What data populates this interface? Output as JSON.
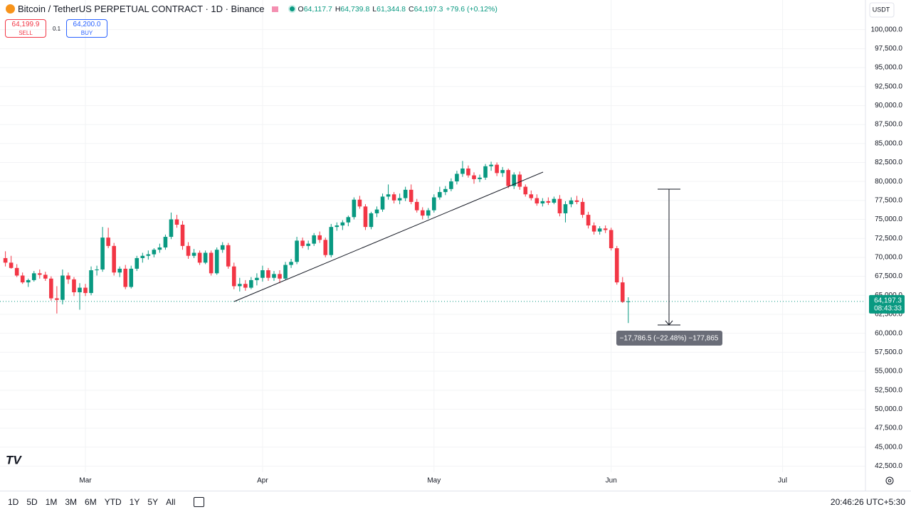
{
  "header": {
    "title": "Bitcoin / TetherUS PERPETUAL CONTRACT · 1D · Binance",
    "ohlc": [
      {
        "key": "O",
        "value": "64,117.7"
      },
      {
        "key": "H",
        "value": "64,739.8"
      },
      {
        "key": "L",
        "value": "61,344.8"
      },
      {
        "key": "C",
        "value": "64,197.3"
      }
    ],
    "change": "+79.6 (+0.12%)"
  },
  "order_panel": {
    "sell_price": "64,199.9",
    "sell_label": "SELL",
    "quantity": "0.1",
    "buy_price": "64,200.0",
    "buy_label": "BUY"
  },
  "currency": "USDT",
  "measure": {
    "label": "−17,786.5 (−22.48%) −177,865"
  },
  "toolbar": {
    "ranges": [
      "1D",
      "5D",
      "1M",
      "3M",
      "6M",
      "YTD",
      "1Y",
      "5Y",
      "All"
    ],
    "clock": "20:46:26 UTC+5:30"
  },
  "chart_data": {
    "type": "candlestick",
    "up_color": "#089981",
    "down_color": "#f23645",
    "grid": true,
    "categories": [
      null,
      null,
      null,
      null,
      null,
      null,
      null,
      null,
      null,
      null,
      null,
      null,
      null,
      null,
      "Mar",
      null,
      null,
      null,
      null,
      null,
      null,
      null,
      null,
      null,
      null,
      null,
      null,
      null,
      null,
      null,
      null,
      null,
      null,
      null,
      null,
      null,
      null,
      null,
      null,
      null,
      null,
      null,
      null,
      null,
      null,
      "Apr",
      null,
      null,
      null,
      null,
      null,
      null,
      null,
      null,
      null,
      null,
      null,
      null,
      null,
      null,
      null,
      null,
      null,
      null,
      null,
      null,
      null,
      null,
      null,
      null,
      null,
      null,
      null,
      null,
      null,
      "May",
      null,
      null,
      null,
      null,
      null,
      null,
      null,
      null,
      null,
      null,
      null,
      null,
      null,
      null,
      null,
      null,
      null,
      null,
      null,
      null,
      null,
      null,
      null,
      null,
      null,
      null,
      null,
      null,
      null,
      null,
      "Jun",
      null,
      null,
      null,
      null,
      null,
      null,
      null,
      null,
      null,
      null,
      null,
      null,
      null,
      null,
      null,
      null,
      null,
      null,
      null,
      null,
      null,
      null,
      null,
      null,
      null,
      null,
      null,
      null,
      null,
      "Jul",
      null,
      null,
      null,
      null,
      null,
      null,
      null,
      null,
      null,
      null,
      null,
      null,
      null,
      null
    ],
    "open": [
      69900,
      69300,
      68600,
      67600,
      66700,
      67000,
      67900,
      67700,
      67200,
      64600,
      64400,
      67600,
      67100,
      65400,
      66000,
      65300,
      68300,
      68400,
      72600,
      71500,
      68000,
      68500,
      66100,
      68500,
      69900,
      70200,
      70400,
      71000,
      71300,
      72700,
      75000,
      74300,
      71500,
      70200,
      70600,
      69300,
      70600,
      67900,
      71000,
      71600,
      68800,
      66200,
      66500,
      66000,
      67000,
      67300,
      68300,
      67300,
      67800,
      67200,
      69000,
      69400,
      72200,
      71500,
      71800,
      72900,
      72300,
      70300,
      74000,
      74200,
      74600,
      75300,
      77600,
      76700,
      74000,
      75800,
      76300,
      78000,
      78300,
      77500,
      77800,
      78900,
      77300,
      76200,
      75500,
      76200,
      77900,
      78600,
      79000,
      80000,
      81000,
      81700,
      80800,
      80300,
      80500,
      82000,
      82200,
      81100,
      81500,
      79400,
      80900,
      79300,
      78300,
      77800,
      77100,
      77400,
      77200,
      77700,
      75800,
      77000,
      77500,
      77300,
      75600,
      74200,
      73400,
      73800,
      73600,
      71200,
      66700,
      64117.7,
      null,
      null,
      null,
      null,
      null,
      null,
      null,
      null,
      null,
      null,
      null,
      null,
      null,
      null,
      null,
      null,
      null,
      null,
      null,
      null,
      null,
      null,
      null,
      null,
      null,
      null,
      null,
      null,
      null,
      null,
      null,
      null,
      null,
      null,
      null,
      null,
      null,
      null,
      null,
      null,
      null
    ],
    "high": [
      70800,
      70200,
      69100,
      68000,
      67200,
      68200,
      68400,
      68100,
      67500,
      66200,
      68400,
      68000,
      67400,
      66600,
      66500,
      68800,
      68900,
      74000,
      73900,
      71900,
      68800,
      69000,
      68900,
      70200,
      70600,
      70900,
      71200,
      71800,
      73000,
      75900,
      75600,
      74800,
      72000,
      71100,
      70900,
      70900,
      70900,
      71300,
      72000,
      71900,
      69300,
      67300,
      67000,
      67400,
      67900,
      68900,
      68600,
      68200,
      68300,
      69400,
      69800,
      72700,
      72600,
      72200,
      73200,
      73400,
      72600,
      74400,
      74600,
      74900,
      75500,
      77900,
      78100,
      77000,
      76000,
      76700,
      78400,
      79600,
      78600,
      78400,
      79300,
      79600,
      77700,
      76600,
      76500,
      78300,
      79300,
      79400,
      80400,
      81400,
      82700,
      82100,
      81200,
      80900,
      82300,
      82600,
      82500,
      81900,
      81700,
      81200,
      81300,
      79600,
      78800,
      78300,
      77800,
      77900,
      78000,
      78200,
      77400,
      77900,
      78100,
      77800,
      76000,
      74600,
      74100,
      74200,
      73900,
      71500,
      67400,
      64739.8,
      null,
      null,
      null,
      null,
      null,
      null,
      null,
      null,
      null,
      null,
      null,
      null,
      null,
      null,
      null,
      null,
      null,
      null,
      null,
      null,
      null,
      null,
      null,
      null,
      null,
      null,
      null,
      null,
      null,
      null,
      null,
      null,
      null,
      null,
      null,
      null,
      null,
      null,
      null,
      null,
      null
    ],
    "low": [
      68800,
      68500,
      67400,
      66500,
      66100,
      66800,
      67200,
      66900,
      64300,
      62600,
      63800,
      66500,
      64900,
      63100,
      64900,
      65000,
      67600,
      68100,
      71200,
      67600,
      67400,
      65800,
      65900,
      68200,
      69300,
      69700,
      70000,
      70600,
      71000,
      72400,
      73900,
      71000,
      69800,
      69900,
      69000,
      69100,
      67600,
      67700,
      70600,
      68500,
      65800,
      65500,
      65600,
      65800,
      66300,
      66800,
      66900,
      66900,
      66600,
      67000,
      68600,
      69100,
      71200,
      71000,
      71500,
      71900,
      70000,
      70000,
      73500,
      73600,
      74100,
      75000,
      76400,
      73600,
      73700,
      75300,
      76000,
      77600,
      77100,
      77000,
      77400,
      77000,
      75900,
      75000,
      75100,
      75900,
      77600,
      78200,
      78700,
      79600,
      80600,
      80500,
      79700,
      79900,
      80200,
      81400,
      80700,
      80600,
      79100,
      79000,
      78900,
      78000,
      77500,
      76800,
      76700,
      76900,
      77000,
      75400,
      74600,
      76600,
      77000,
      75200,
      73800,
      73000,
      73000,
      73200,
      70900,
      66400,
      64000,
      61344.8,
      null,
      null,
      null,
      null,
      null,
      null,
      null,
      null,
      null,
      null,
      null,
      null,
      null,
      null,
      null,
      null,
      null,
      null,
      null,
      null,
      null,
      null,
      null,
      null,
      null,
      null,
      null,
      null,
      null,
      null,
      null,
      null,
      null,
      null,
      null,
      null,
      null,
      null,
      null,
      null,
      null
    ],
    "close": [
      69300,
      68600,
      67600,
      66700,
      67000,
      67900,
      67700,
      67200,
      64600,
      64400,
      67600,
      67100,
      65400,
      66000,
      65300,
      68300,
      68400,
      72600,
      71500,
      68000,
      68500,
      66100,
      68500,
      69900,
      70200,
      70400,
      71000,
      71300,
      72700,
      75000,
      74300,
      71500,
      70200,
      70600,
      69300,
      70600,
      67900,
      71000,
      71600,
      68800,
      66200,
      66500,
      66000,
      67000,
      67300,
      68300,
      67300,
      67800,
      67200,
      69000,
      69400,
      72200,
      71500,
      71800,
      72900,
      72300,
      70300,
      74000,
      74200,
      74600,
      75300,
      77600,
      76700,
      74000,
      75800,
      76300,
      78000,
      78300,
      77500,
      77800,
      78900,
      77300,
      76200,
      75500,
      76200,
      77900,
      78600,
      79000,
      80000,
      81000,
      81700,
      80800,
      80300,
      80500,
      82000,
      82200,
      81100,
      81500,
      79400,
      80900,
      79300,
      78300,
      77800,
      77100,
      77400,
      77200,
      77700,
      75800,
      77000,
      77500,
      77300,
      75600,
      74200,
      73400,
      73800,
      73600,
      71200,
      66700,
      64117.7,
      64197.3,
      null,
      null,
      null,
      null,
      null,
      null,
      null,
      null,
      null,
      null,
      null,
      null,
      null,
      null,
      null,
      null,
      null,
      null,
      null,
      null,
      null,
      null,
      null,
      null,
      null,
      null,
      null,
      null,
      null,
      null,
      null,
      null,
      null,
      null,
      null,
      null,
      null,
      null,
      null,
      null,
      null
    ],
    "last_price_label": "64,197.3",
    "countdown": "08:43:33",
    "ylim": [
      39450,
      103900
    ],
    "yticks": [
      {
        "value": 42500,
        "label": "42,500.0"
      },
      {
        "value": 45000,
        "label": "45,000.0"
      },
      {
        "value": 47500,
        "label": "47,500.0"
      },
      {
        "value": 50000,
        "label": "50,000.0"
      },
      {
        "value": 52500,
        "label": "52,500.0"
      },
      {
        "value": 55000,
        "label": "55,000.0"
      },
      {
        "value": 57500,
        "label": "57,500.0"
      },
      {
        "value": 60000,
        "label": "60,000.0"
      },
      {
        "value": 62500,
        "label": "62,500.0"
      },
      {
        "value": 65000,
        "label": "65,000.0"
      },
      {
        "value": 67500,
        "label": "67,500.0"
      },
      {
        "value": 70000,
        "label": "70,000.0"
      },
      {
        "value": 72500,
        "label": "72,500.0"
      },
      {
        "value": 75000,
        "label": "75,000.0"
      },
      {
        "value": 77500,
        "label": "77,500.0"
      },
      {
        "value": 80000,
        "label": "80,000.0"
      },
      {
        "value": 82500,
        "label": "82,500.0"
      },
      {
        "value": 85000,
        "label": "85,000.0"
      },
      {
        "value": 87500,
        "label": "87,500.0"
      },
      {
        "value": 90000,
        "label": "90,000.0"
      },
      {
        "value": 92500,
        "label": "92,500.0"
      },
      {
        "value": 95000,
        "label": "95,000.0"
      },
      {
        "value": 97500,
        "label": "97,500.0"
      },
      {
        "value": 100000,
        "label": "100,000.0"
      }
    ]
  }
}
